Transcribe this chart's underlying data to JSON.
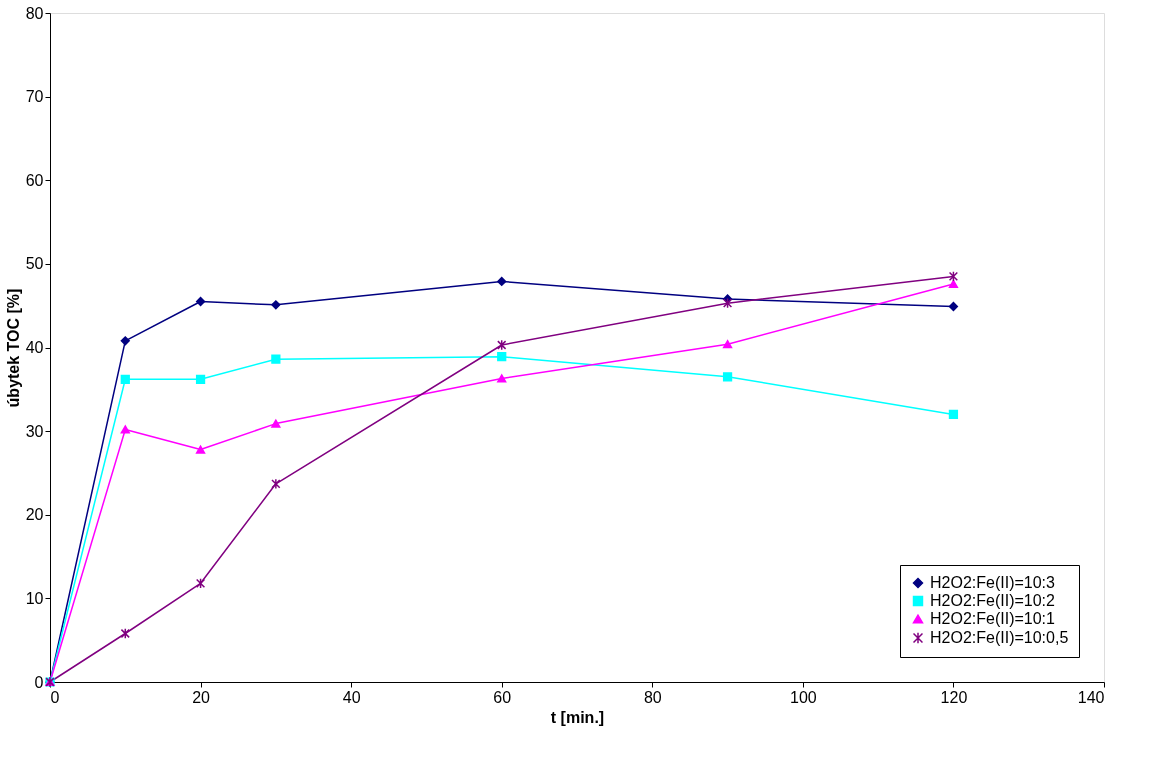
{
  "chart_data": {
    "type": "line",
    "xlabel": "t [min.]",
    "ylabel": "úbytek TOC [%]",
    "x": [
      0,
      10,
      20,
      30,
      60,
      90,
      120
    ],
    "series": [
      {
        "name": "H2O2:Fe(II)=10:3",
        "color": "#000080",
        "marker": "diamond",
        "values": [
          0,
          40.8,
          45.5,
          45.1,
          47.9,
          45.8,
          44.9
        ]
      },
      {
        "name": "H2O2:Fe(II)=10:2",
        "color": "#00ffff",
        "marker": "square",
        "values": [
          0,
          36.2,
          36.2,
          38.6,
          38.9,
          36.5,
          32.0
        ]
      },
      {
        "name": "H2O2:Fe(II)=10:1",
        "color": "#ff00ff",
        "marker": "triangle",
        "values": [
          0,
          30.2,
          27.8,
          30.9,
          36.3,
          40.4,
          47.6
        ]
      },
      {
        "name": "H2O2:Fe(II)=10:0,5",
        "color": "#800080",
        "marker": "cross",
        "values": [
          0,
          5.8,
          11.8,
          23.7,
          40.3,
          45.3,
          48.5
        ]
      }
    ],
    "xlim": [
      0,
      140
    ],
    "xticks": [
      0,
      20,
      40,
      60,
      80,
      100,
      120,
      140
    ],
    "ylim": [
      0,
      80
    ],
    "yticks": [
      0,
      10,
      20,
      30,
      40,
      50,
      60,
      70,
      80
    ],
    "grid": false,
    "legend": "bottom right",
    "line_style": "solid"
  }
}
